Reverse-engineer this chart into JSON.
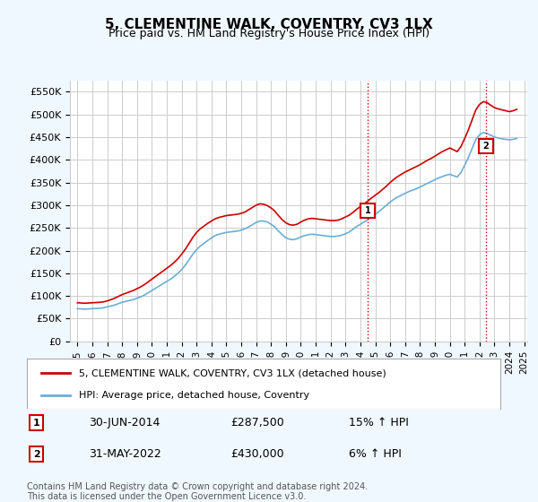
{
  "title": "5, CLEMENTINE WALK, COVENTRY, CV3 1LX",
  "subtitle": "Price paid vs. HM Land Registry's House Price Index (HPI)",
  "ylabel_ticks": [
    "£0",
    "£50K",
    "£100K",
    "£150K",
    "£200K",
    "£250K",
    "£300K",
    "£350K",
    "£400K",
    "£450K",
    "£500K",
    "£550K"
  ],
  "ytick_vals": [
    0,
    50000,
    100000,
    150000,
    200000,
    250000,
    300000,
    350000,
    400000,
    450000,
    500000,
    550000
  ],
  "ylim": [
    0,
    575000
  ],
  "hpi_color": "#6aaed6",
  "price_color": "#cc0000",
  "marker1_date": 2014.5,
  "marker2_date": 2022.417,
  "marker1_price": 287500,
  "marker2_price": 430000,
  "annotation1": [
    "1",
    "30-JUN-2014",
    "£287,500",
    "15% ↑ HPI"
  ],
  "annotation2": [
    "2",
    "31-MAY-2022",
    "£430,000",
    "6% ↑ HPI"
  ],
  "legend_label1": "5, CLEMENTINE WALK, COVENTRY, CV3 1LX (detached house)",
  "legend_label2": "HPI: Average price, detached house, Coventry",
  "footer": "Contains HM Land Registry data © Crown copyright and database right 2024.\nThis data is licensed under the Open Government Licence v3.0.",
  "background_color": "#f0f8ff",
  "plot_bg_color": "#ffffff"
}
